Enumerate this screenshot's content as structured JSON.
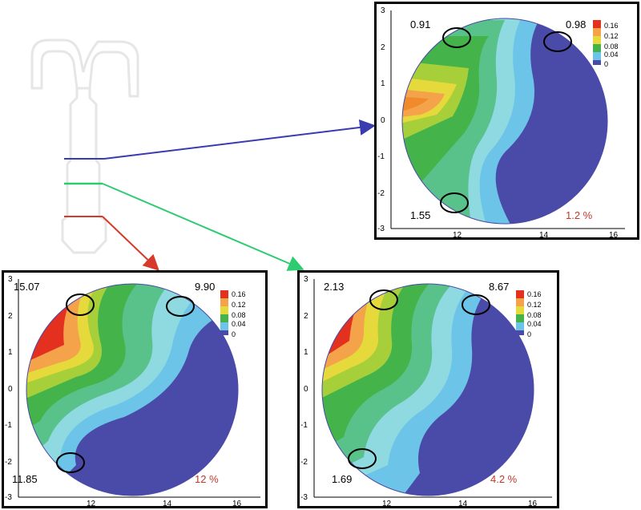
{
  "panels": [
    {
      "id": "top",
      "markers": [
        "0.91",
        "0.98",
        "1.55"
      ],
      "percent": "1.2 %",
      "y_ticks": [
        "3",
        "2",
        "1",
        "0",
        "-1",
        "-2",
        "-3"
      ],
      "x_ticks": [
        "12",
        "14",
        "16"
      ],
      "colorbar_ticks": [
        "0.16",
        "0.12",
        "0.08",
        "0.04",
        "0"
      ]
    },
    {
      "id": "bottom-left",
      "markers": [
        "15.07",
        "9.90",
        "11.85"
      ],
      "percent": "12 %",
      "y_ticks": [
        "3",
        "2",
        "1",
        "0",
        "-1",
        "-2",
        "-3"
      ],
      "x_ticks": [
        "12",
        "14",
        "16"
      ],
      "colorbar_ticks": [
        "0.16",
        "0.12",
        "0.08",
        "0.04",
        "0"
      ]
    },
    {
      "id": "bottom-right",
      "markers": [
        "2.13",
        "8.67",
        "1.69"
      ],
      "percent": "4.2 %",
      "y_ticks": [
        "3",
        "2",
        "1",
        "0",
        "-1",
        "-2",
        "-3"
      ],
      "x_ticks": [
        "12",
        "14",
        "16"
      ],
      "colorbar_ticks": [
        "0.16",
        "0.12",
        "0.08",
        "0.04",
        "0"
      ]
    }
  ],
  "colors": {
    "blue_line": "#3b3bb0",
    "green_line": "#2ecc71",
    "red_line": "#d63a2a",
    "low": "#4a4aa8",
    "high": "#e3301f"
  }
}
